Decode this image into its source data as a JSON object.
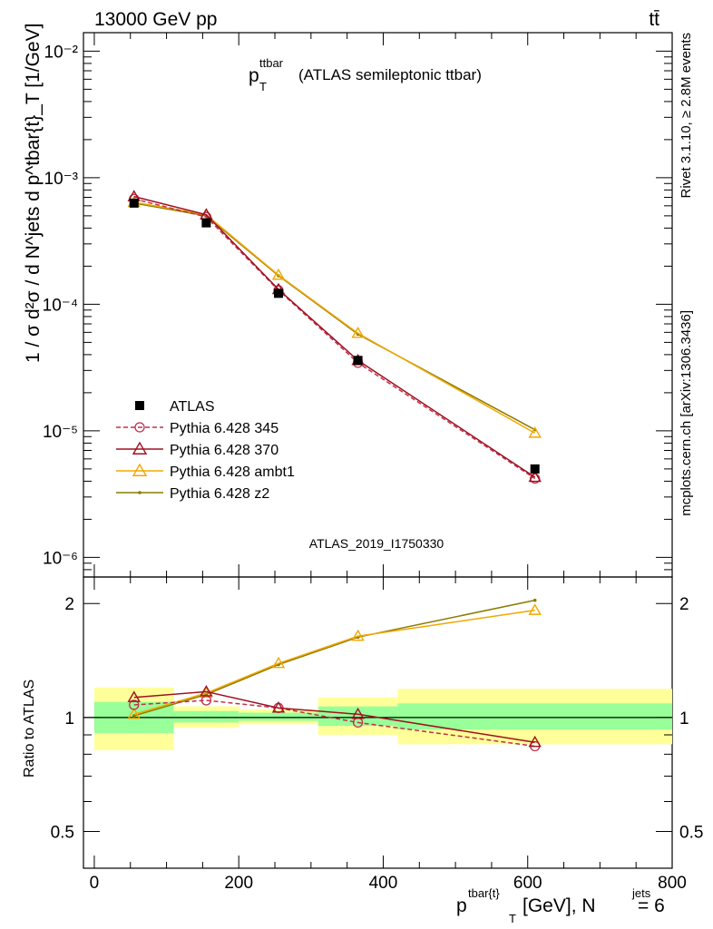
{
  "header": {
    "energy_label": "13000 GeV pp",
    "process_label": "tt̄"
  },
  "side_labels": {
    "rivet": "Rivet 3.1.10, ≥ 2.8M events",
    "mcplots": "mcplots.cern.ch [arXiv:1306.3436]"
  },
  "analysis_id": "ATLAS_2019_I1750330",
  "chart_data": [
    {
      "type": "line",
      "role": "main",
      "title_main": "p",
      "title_sup": "ttbar",
      "title_sub": "T",
      "title_rest": "(ATLAS semileptonic ttbar)",
      "ylabel": "1 / σ d²σ / d N^jets d p^tbar{t}_T [1/GeV]",
      "yscale": "log",
      "ylim": [
        7e-07,
        0.014
      ],
      "xlim": [
        -15,
        800
      ],
      "ytick_labels": [
        "10⁻²",
        "10⁻³",
        "10⁻⁴",
        "10⁻⁵",
        "10⁻⁶"
      ],
      "ytick_values": [
        0.01,
        0.001,
        0.0001,
        1e-05,
        1e-06
      ],
      "x": [
        55,
        155,
        255,
        365,
        610
      ],
      "series": [
        {
          "name": "ATLAS",
          "color": "#000000",
          "marker": "square",
          "values": [
            0.00063,
            0.00044,
            0.000122,
            3.6e-05,
            5e-06
          ]
        },
        {
          "name": "Pythia 6.428 345",
          "color": "#c0304a",
          "marker": "circle",
          "dashed": true,
          "values": [
            0.00068,
            0.00049,
            0.000129,
            3.45e-05,
            4.2e-06
          ]
        },
        {
          "name": "Pythia 6.428 370",
          "color": "#a01020",
          "marker": "triangle",
          "values": [
            0.00071,
            0.00051,
            0.000131,
            3.6e-05,
            4.3e-06
          ]
        },
        {
          "name": "Pythia 6.428 ambt1",
          "color": "#f0a800",
          "marker": "triangle",
          "values": [
            0.00064,
            0.00051,
            0.00017,
            5.9e-05,
            9.6e-06
          ]
        },
        {
          "name": "Pythia 6.428 z2",
          "color": "#8c7a00",
          "marker": "dot",
          "values": [
            0.00063,
            0.0005,
            0.000168,
            5.8e-05,
            1.02e-05
          ]
        }
      ]
    },
    {
      "type": "line",
      "role": "ratio",
      "ylabel": "Ratio to ATLAS",
      "yscale": "log",
      "ylim": [
        0.4,
        2.35
      ],
      "xlim": [
        -15,
        800
      ],
      "xlabel_main": "p",
      "xlabel_sup": "tbar{t}",
      "xlabel_sub": "T",
      "xlabel_rest": "[GeV], N",
      "xlabel_sup2": "jets",
      "xlabel_tail": "= 6",
      "xtick_labels": [
        "0",
        "200",
        "400",
        "600",
        "800"
      ],
      "xtick_values": [
        0,
        200,
        400,
        600,
        800
      ],
      "ytick_labels": [
        "2",
        "1",
        "0.5"
      ],
      "ytick_values": [
        2,
        1,
        0.5
      ],
      "bands": [
        {
          "x0": 0,
          "x1": 110,
          "green": [
            0.91,
            1.1
          ],
          "yellow": [
            0.82,
            1.2
          ]
        },
        {
          "x0": 110,
          "x1": 200,
          "green": [
            0.97,
            1.04
          ],
          "yellow": [
            0.94,
            1.07
          ]
        },
        {
          "x0": 200,
          "x1": 310,
          "green": [
            0.98,
            1.03
          ],
          "yellow": [
            0.96,
            1.05
          ]
        },
        {
          "x0": 310,
          "x1": 420,
          "green": [
            0.95,
            1.07
          ],
          "yellow": [
            0.9,
            1.13
          ]
        },
        {
          "x0": 420,
          "x1": 800,
          "green": [
            0.93,
            1.09
          ],
          "yellow": [
            0.85,
            1.19
          ]
        }
      ],
      "x": [
        55,
        155,
        255,
        365,
        610
      ],
      "series": [
        {
          "name": "Pythia 6.428 345",
          "color": "#c0304a",
          "marker": "circle",
          "dashed": true,
          "values": [
            1.08,
            1.11,
            1.06,
            0.97,
            0.84
          ]
        },
        {
          "name": "Pythia 6.428 370",
          "color": "#a01020",
          "marker": "triangle",
          "values": [
            1.13,
            1.17,
            1.06,
            1.02,
            0.86
          ]
        },
        {
          "name": "Pythia 6.428 ambt1",
          "color": "#f0a800",
          "marker": "triangle",
          "values": [
            1.02,
            1.16,
            1.39,
            1.64,
            1.92
          ]
        },
        {
          "name": "Pythia 6.428 z2",
          "color": "#8c7a00",
          "marker": "dot",
          "values": [
            1.01,
            1.15,
            1.38,
            1.63,
            2.04
          ]
        }
      ]
    }
  ]
}
